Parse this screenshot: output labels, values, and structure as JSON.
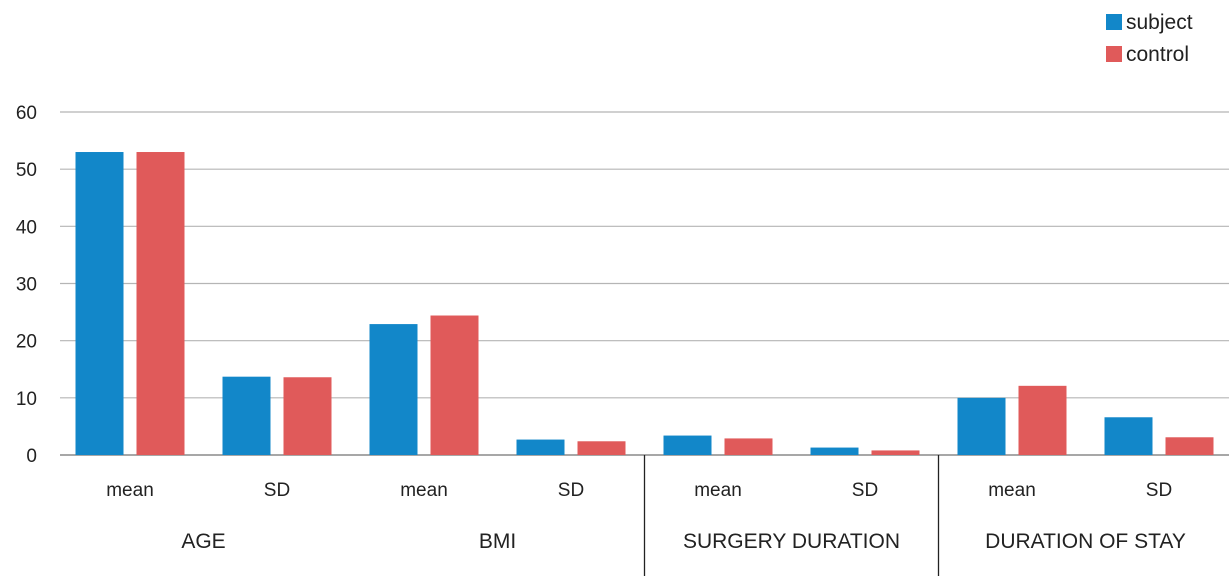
{
  "chart_data": {
    "type": "bar",
    "groups": [
      "AGE",
      "BMI",
      "SURGERY DURATION",
      "DURATION OF STAY"
    ],
    "subcategories": [
      "mean",
      "SD",
      "mean",
      "SD",
      "mean",
      "SD",
      "mean",
      "SD"
    ],
    "series": [
      {
        "name": "subject",
        "color": "#1287c9",
        "values": [
          53,
          13.7,
          22.9,
          2.7,
          3.4,
          1.3,
          10,
          6.6
        ]
      },
      {
        "name": "control",
        "color": "#e05a5a",
        "values": [
          53,
          13.6,
          24.4,
          2.4,
          2.9,
          0.8,
          12.1,
          3.1
        ]
      }
    ],
    "y_ticks": [
      "0",
      "10",
      "20",
      "30",
      "40",
      "50",
      "60"
    ],
    "ylim": [
      0,
      60
    ],
    "grid": true,
    "legend_position": "top-right"
  }
}
